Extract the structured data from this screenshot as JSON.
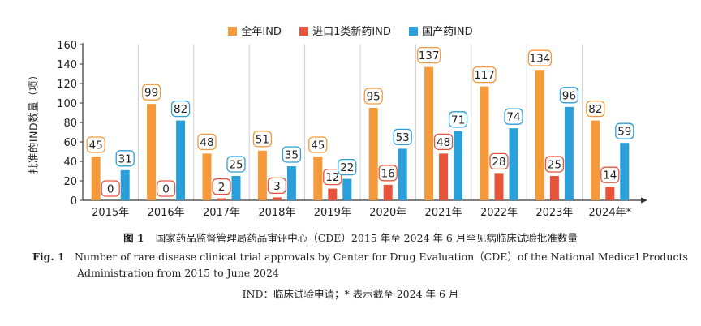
{
  "chart_data": {
    "type": "bar",
    "categories": [
      "2015年",
      "2016年",
      "2017年",
      "2018年",
      "2019年",
      "2020年",
      "2021年",
      "2022年",
      "2023年",
      "2024年*"
    ],
    "series": [
      {
        "name": "全年IND",
        "color": "#f59a3a",
        "values": [
          45,
          99,
          48,
          51,
          45,
          95,
          137,
          117,
          134,
          82
        ]
      },
      {
        "name": "进口1类新药IND",
        "color": "#e8533a",
        "values": [
          0,
          0,
          2,
          3,
          12,
          16,
          48,
          28,
          25,
          14
        ]
      },
      {
        "name": "国产药IND",
        "color": "#2b9fd9",
        "values": [
          31,
          82,
          25,
          35,
          22,
          53,
          71,
          74,
          96,
          59
        ]
      }
    ],
    "ylabel": "批准的IND数量（项）",
    "ylim": [
      0,
      160
    ],
    "yticks": [
      0,
      20,
      40,
      60,
      80,
      100,
      120,
      140,
      160
    ],
    "grid": false,
    "legend": "top-center"
  },
  "caption": {
    "cn_label": "图 1",
    "cn_text": "国家药品监督管理局药品审评中心（CDE）2015 年至 2024 年 6 月罕见病临床试验批准数量",
    "en_label": "Fig. 1",
    "en_text_line1": "Number of rare disease clinical trial approvals by Center for Drug Evaluation（CDE）of the National Medical Products",
    "en_text_line2": "Administration from 2015 to June 2024",
    "note": "IND：临床试验申请；* 表示截至 2024 年 6 月"
  }
}
